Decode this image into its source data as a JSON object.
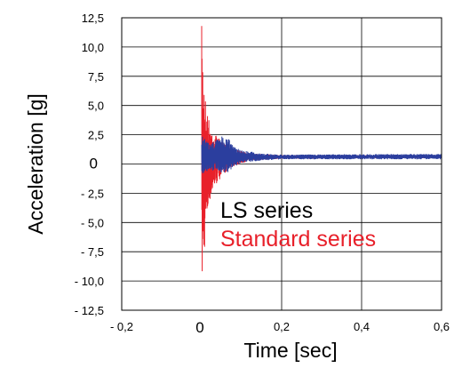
{
  "chart_data": {
    "type": "line",
    "xlabel": "Time [sec]",
    "ylabel": "Acceleration [g]",
    "xlim": [
      -0.2,
      0.6
    ],
    "ylim": [
      -12.5,
      12.5
    ],
    "x_ticks": [
      -0.2,
      0,
      0.2,
      0.4,
      0.6
    ],
    "x_tick_labels": [
      "- 0,2",
      "0",
      "0,2",
      "0,4",
      "0,6"
    ],
    "y_ticks": [
      12.5,
      10,
      7.5,
      5,
      2.5,
      0,
      -2.5,
      -5,
      -7.5,
      -10,
      -12.5
    ],
    "y_tick_labels": [
      "12,5",
      "10,0",
      "7,5",
      "5,0",
      "2,5",
      "0",
      "- 2,5",
      "- 5,0",
      "- 7,5",
      "- 10,0",
      "- 12,5"
    ],
    "grid": {
      "vertical_at": [
        0.2,
        0.4
      ],
      "horizontal_at": [
        10,
        7.5,
        5,
        2.5,
        0,
        -2.5,
        -5,
        -7.5,
        -10
      ]
    },
    "series": [
      {
        "name": "Standard series",
        "color": "#e8202a",
        "envelope": [
          {
            "x": 0.0,
            "max": 11.8,
            "min": -11.5
          },
          {
            "x": 0.01,
            "max": 5.5,
            "min": -5.8
          },
          {
            "x": 0.02,
            "max": 3.5,
            "min": -3.2
          },
          {
            "x": 0.03,
            "max": 2.8,
            "min": -2.2
          },
          {
            "x": 0.05,
            "max": 1.9,
            "min": -1.0
          },
          {
            "x": 0.08,
            "max": 1.3,
            "min": -0.2
          },
          {
            "x": 0.12,
            "max": 0.9,
            "min": 0.3
          },
          {
            "x": 0.2,
            "max": 0.75,
            "min": 0.45
          },
          {
            "x": 0.4,
            "max": 0.75,
            "min": 0.5
          },
          {
            "x": 0.6,
            "max": 0.75,
            "min": 0.5
          }
        ]
      },
      {
        "name": "LS series",
        "color": "#2b3e9e",
        "envelope": [
          {
            "x": 0.0,
            "max": 2.4,
            "min": -0.9
          },
          {
            "x": 0.02,
            "max": 1.8,
            "min": -0.5
          },
          {
            "x": 0.04,
            "max": 2.2,
            "min": -0.7
          },
          {
            "x": 0.06,
            "max": 2.5,
            "min": -0.8
          },
          {
            "x": 0.08,
            "max": 1.6,
            "min": -0.4
          },
          {
            "x": 0.1,
            "max": 1.2,
            "min": 0.1
          },
          {
            "x": 0.15,
            "max": 0.9,
            "min": 0.3
          },
          {
            "x": 0.2,
            "max": 0.8,
            "min": 0.4
          },
          {
            "x": 0.4,
            "max": 0.85,
            "min": 0.4
          },
          {
            "x": 0.6,
            "max": 0.85,
            "min": 0.4
          }
        ]
      }
    ],
    "legend": {
      "placement": "bottom-center",
      "entries": [
        {
          "label": "LS series",
          "color": "#000000"
        },
        {
          "label": "Standard series",
          "color": "#e8202a"
        }
      ]
    }
  }
}
